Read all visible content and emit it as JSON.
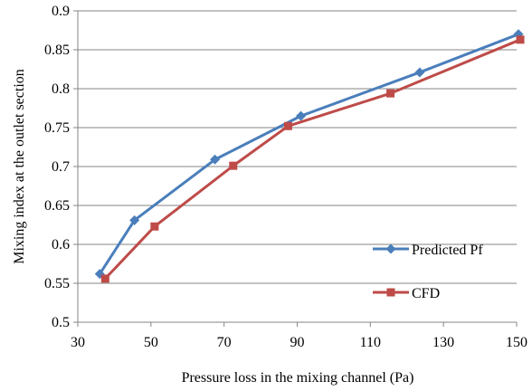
{
  "chart_data": {
    "type": "line",
    "title": "",
    "xlabel": "Pressure loss in the mixing channel  (Pa)",
    "ylabel": "Mixing index at the outlet section",
    "xlim": [
      30,
      150
    ],
    "ylim": [
      0.5,
      0.9
    ],
    "x_ticks": [
      "30",
      "50",
      "70",
      "90",
      "110",
      "130",
      "150"
    ],
    "y_ticks": [
      "0.5",
      "0.55",
      "0.6",
      "0.65",
      "0.7",
      "0.75",
      "0.8",
      "0.85",
      "0.9"
    ],
    "grid": "horizontal",
    "legend_position": "right",
    "series": [
      {
        "name": "Predicted Pf",
        "color": "#4a7ebb",
        "marker": "diamond",
        "x": [
          36,
          45.5,
          67.5,
          91,
          123.5,
          150.5
        ],
        "y": [
          0.562,
          0.631,
          0.709,
          0.765,
          0.821,
          0.87
        ]
      },
      {
        "name": "CFD",
        "color": "#be4b48",
        "marker": "square",
        "x": [
          37.5,
          51,
          72.5,
          87.5,
          115.5,
          151
        ],
        "y": [
          0.556,
          0.623,
          0.701,
          0.752,
          0.794,
          0.863
        ]
      }
    ]
  }
}
